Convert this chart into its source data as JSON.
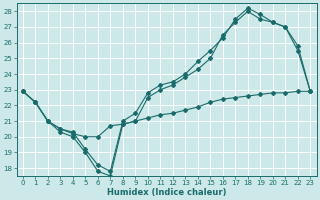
{
  "xlabel": "Humidex (Indice chaleur)",
  "bg_color": "#cce8e8",
  "grid_color": "#ffffff",
  "line_color": "#1a6b6b",
  "xlim": [
    -0.5,
    23.5
  ],
  "ylim": [
    17.5,
    28.5
  ],
  "xticks": [
    0,
    1,
    2,
    3,
    4,
    5,
    6,
    7,
    8,
    9,
    10,
    11,
    12,
    13,
    14,
    15,
    16,
    17,
    18,
    19,
    20,
    21,
    22,
    23
  ],
  "yticks": [
    18,
    19,
    20,
    21,
    22,
    23,
    24,
    25,
    26,
    27,
    28
  ],
  "line1_x": [
    0,
    1,
    2,
    3,
    4,
    5,
    6,
    7,
    8,
    9,
    10,
    11,
    12,
    13,
    14,
    15,
    16,
    17,
    18,
    19,
    20,
    21,
    22,
    23
  ],
  "line1_y": [
    22.9,
    22.2,
    21.0,
    20.5,
    20.2,
    20.0,
    20.0,
    20.7,
    20.8,
    21.0,
    21.2,
    21.4,
    21.5,
    21.7,
    21.9,
    22.2,
    22.4,
    22.5,
    22.6,
    22.7,
    22.8,
    22.8,
    22.9,
    22.9
  ],
  "line2_x": [
    0,
    1,
    2,
    3,
    4,
    5,
    6,
    7,
    8,
    9,
    10,
    11,
    12,
    13,
    14,
    15,
    16,
    17,
    18,
    19,
    20,
    21,
    22,
    23
  ],
  "line2_y": [
    22.9,
    22.2,
    21.0,
    20.3,
    20.0,
    19.0,
    17.8,
    17.5,
    20.8,
    21.0,
    22.5,
    23.0,
    23.3,
    23.8,
    24.3,
    25.0,
    26.5,
    27.3,
    28.0,
    27.5,
    27.3,
    27.0,
    25.5,
    22.9
  ],
  "line3_x": [
    0,
    1,
    2,
    3,
    4,
    5,
    6,
    7,
    8,
    9,
    10,
    11,
    12,
    13,
    14,
    15,
    16,
    17,
    18,
    19,
    20,
    21,
    22,
    23
  ],
  "line3_y": [
    22.9,
    22.2,
    21.0,
    20.5,
    20.3,
    19.2,
    18.2,
    17.8,
    21.0,
    21.5,
    22.8,
    23.3,
    23.5,
    24.0,
    24.8,
    25.5,
    26.3,
    27.5,
    28.2,
    27.8,
    27.3,
    27.0,
    25.8,
    22.9
  ]
}
